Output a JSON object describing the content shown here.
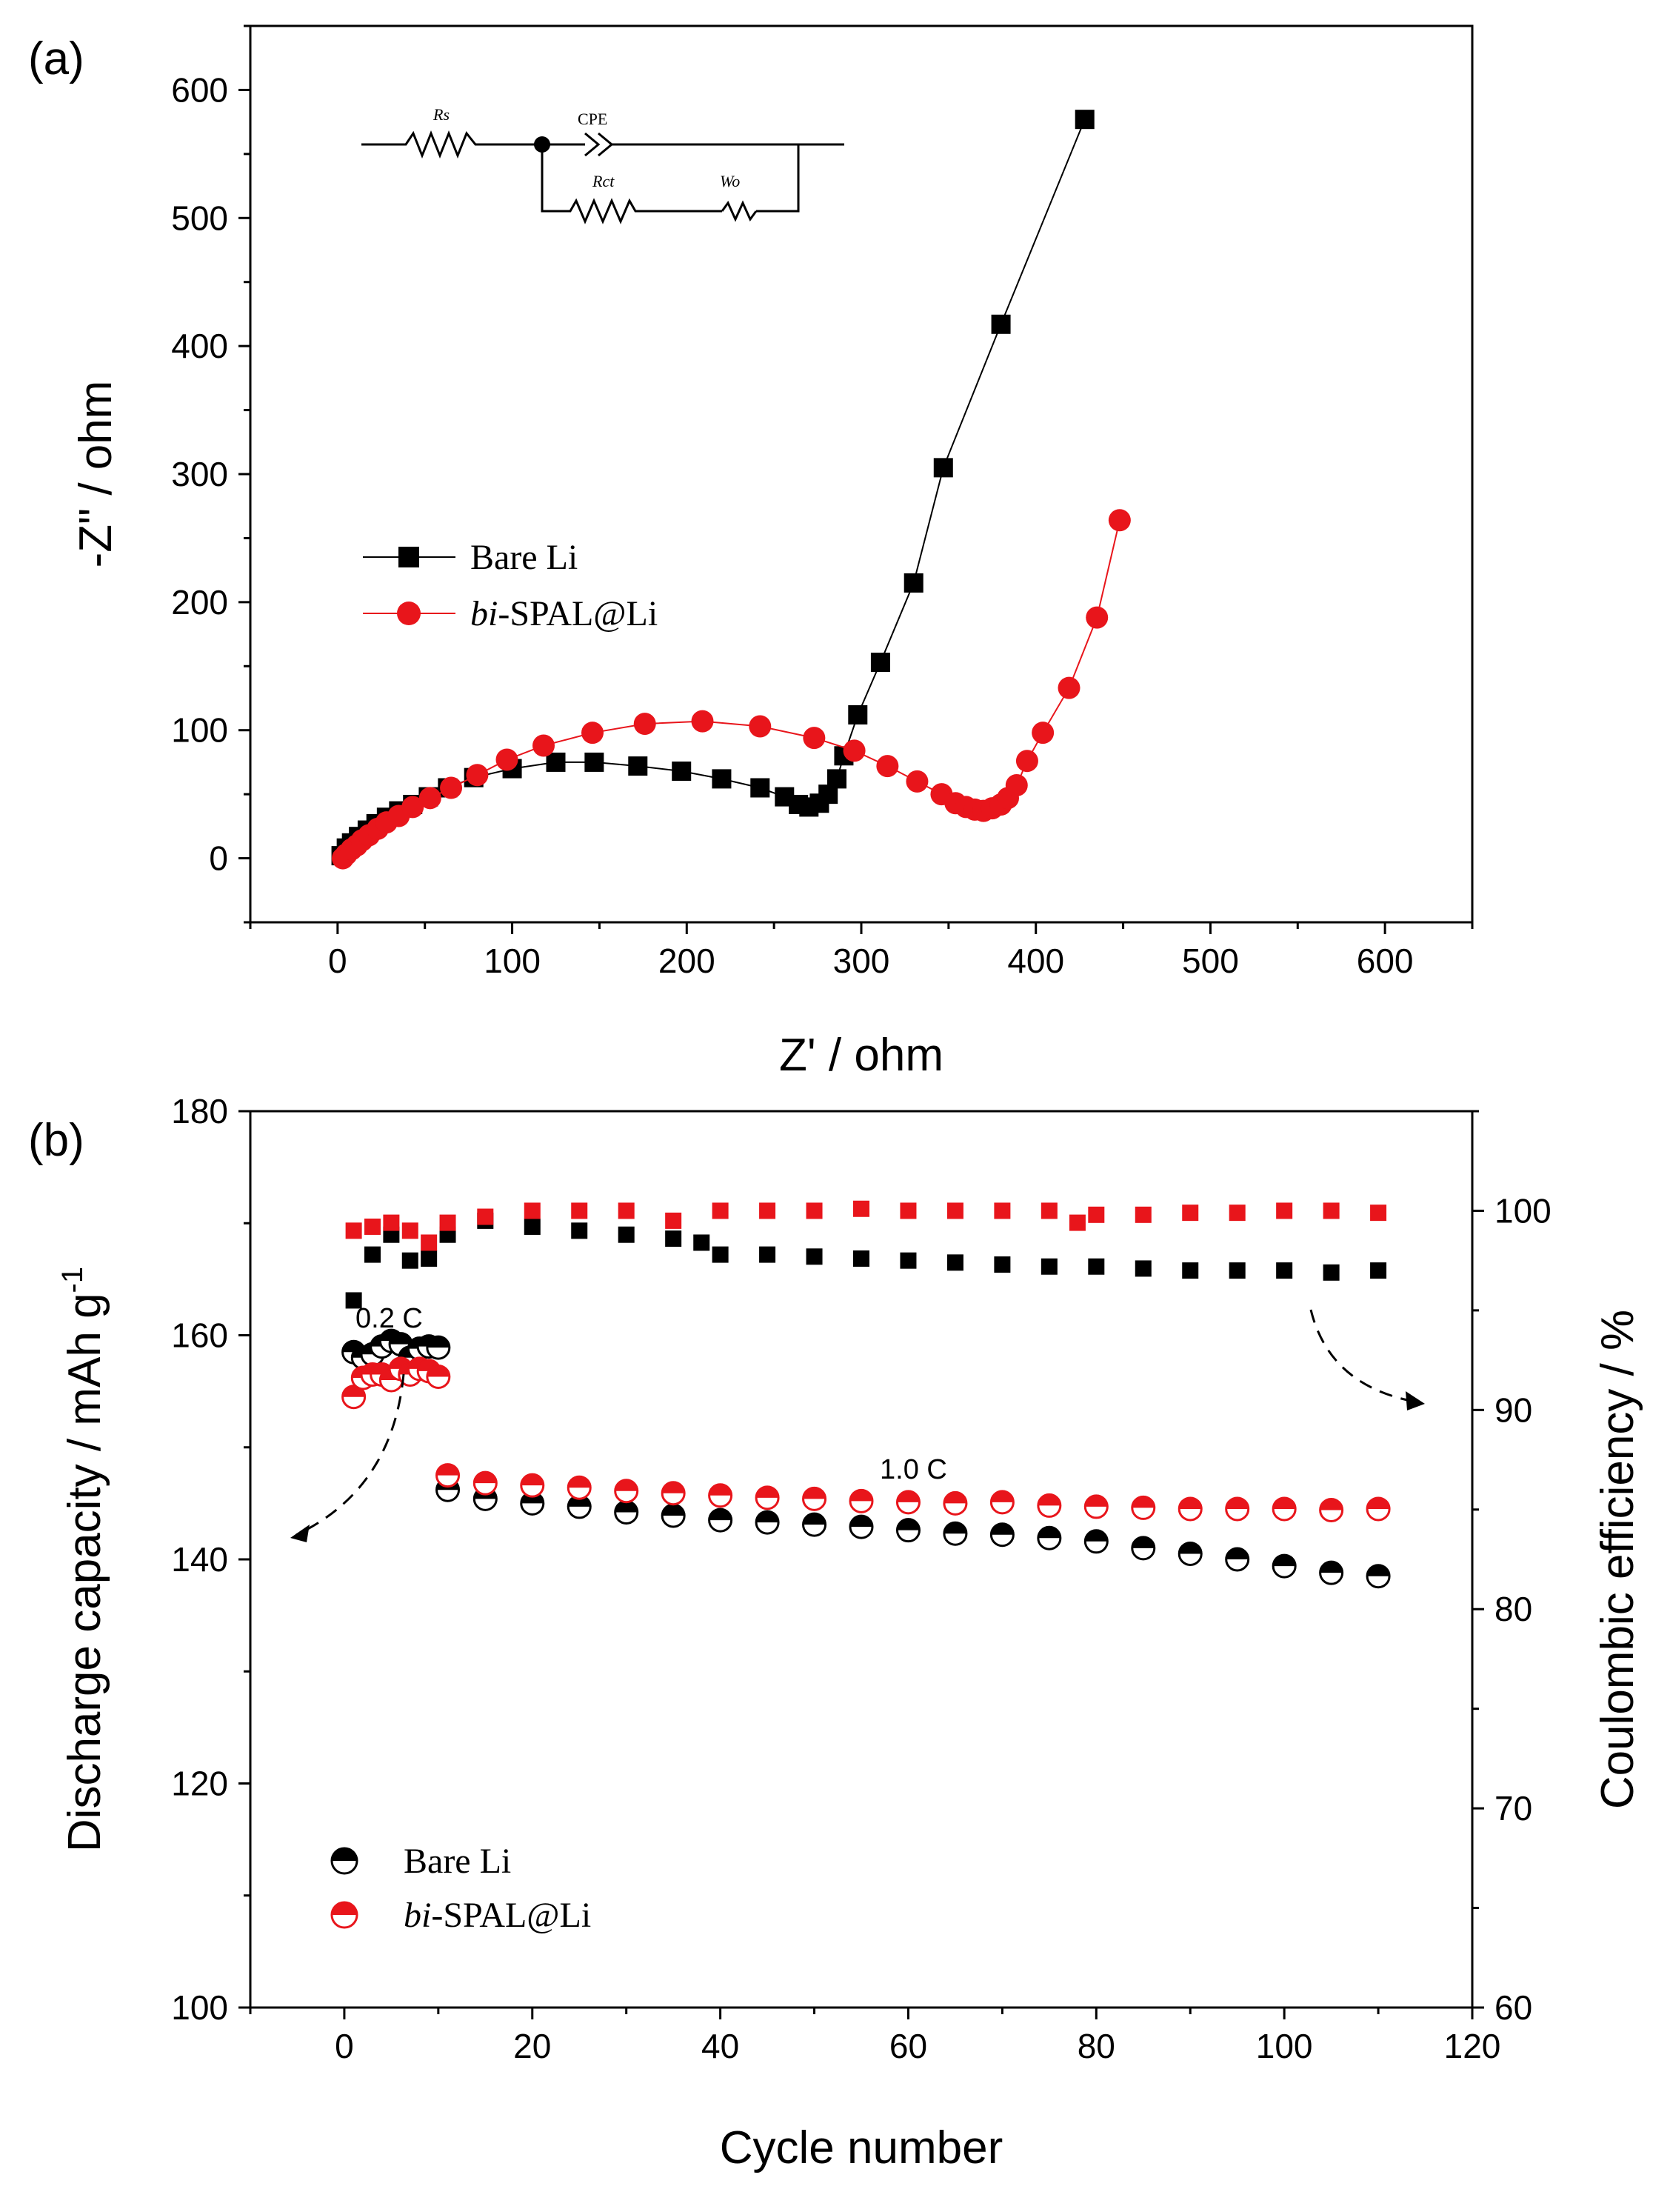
{
  "chart_data": [
    {
      "panel_label": "(a)",
      "type": "scatter",
      "xlabel": "Z' / ohm",
      "ylabel": "-Z\" / ohm",
      "xlim": [
        -50,
        650
      ],
      "ylim": [
        -50,
        650
      ],
      "x_ticks": [
        "0",
        "100",
        "200",
        "300",
        "400",
        "500",
        "600"
      ],
      "y_ticks": [
        "0",
        "100",
        "200",
        "300",
        "400",
        "500",
        "600"
      ],
      "legend_position": "middle-left",
      "inset_circuit": {
        "labels": [
          "Rs",
          "CPE",
          "Rct",
          "Wo"
        ]
      },
      "series": [
        {
          "name": "Bare Li",
          "color": "#000000",
          "marker": "square",
          "points": [
            [
              2,
              2
            ],
            [
              5,
              8
            ],
            [
              8,
              12
            ],
            [
              12,
              17
            ],
            [
              17,
              22
            ],
            [
              22,
              27
            ],
            [
              28,
              32
            ],
            [
              35,
              37
            ],
            [
              43,
              42
            ],
            [
              52,
              48
            ],
            [
              63,
              55
            ],
            [
              78,
              63
            ],
            [
              100,
              70
            ],
            [
              125,
              75
            ],
            [
              147,
              75
            ],
            [
              172,
              72
            ],
            [
              197,
              68
            ],
            [
              220,
              62
            ],
            [
              242,
              55
            ],
            [
              256,
              48
            ],
            [
              264,
              42
            ],
            [
              270,
              40
            ],
            [
              276,
              43
            ],
            [
              281,
              50
            ],
            [
              286,
              62
            ],
            [
              290,
              80
            ],
            [
              298,
              112
            ],
            [
              311,
              153
            ],
            [
              330,
              215
            ],
            [
              347,
              305
            ],
            [
              380,
              417
            ],
            [
              428,
              577
            ]
          ]
        },
        {
          "name": "bi-SPAL@Li",
          "color": "#e8151b",
          "marker": "circle",
          "points": [
            [
              3,
              0
            ],
            [
              5,
              3
            ],
            [
              8,
              7
            ],
            [
              11,
              10
            ],
            [
              14,
              14
            ],
            [
              18,
              18
            ],
            [
              23,
              23
            ],
            [
              28,
              28
            ],
            [
              35,
              33
            ],
            [
              43,
              40
            ],
            [
              53,
              47
            ],
            [
              65,
              55
            ],
            [
              80,
              65
            ],
            [
              97,
              77
            ],
            [
              118,
              88
            ],
            [
              146,
              98
            ],
            [
              176,
              105
            ],
            [
              209,
              107
            ],
            [
              242,
              103
            ],
            [
              273,
              94
            ],
            [
              296,
              84
            ],
            [
              315,
              72
            ],
            [
              332,
              60
            ],
            [
              346,
              50
            ],
            [
              354,
              43
            ],
            [
              360,
              40
            ],
            [
              365,
              38
            ],
            [
              370,
              37
            ],
            [
              375,
              39
            ],
            [
              380,
              42
            ],
            [
              384,
              47
            ],
            [
              389,
              57
            ],
            [
              395,
              76
            ],
            [
              404,
              98
            ],
            [
              419,
              133
            ],
            [
              435,
              188
            ],
            [
              448,
              264
            ]
          ]
        }
      ]
    },
    {
      "panel_label": "(b)",
      "type": "scatter",
      "xlabel": "Cycle number",
      "ylabel": "Discharge capacity / mAh g",
      "ylabel_superscript": "-1",
      "y2label": "Coulombic efficiency / %",
      "xlim": [
        -10,
        120
      ],
      "ylim": [
        100,
        180
      ],
      "y2lim": [
        60,
        105
      ],
      "x_ticks": [
        "0",
        "20",
        "40",
        "60",
        "80",
        "100",
        "120"
      ],
      "y_ticks": [
        "100",
        "120",
        "140",
        "160",
        "180"
      ],
      "y2_ticks": [
        "60",
        "70",
        "80",
        "90",
        "100"
      ],
      "legend_position": "bottom-left",
      "annotations": [
        "0.2 C",
        "1.0 C"
      ],
      "series": [
        {
          "name": "Bare Li",
          "kind": "discharge capacity",
          "color": "#000000",
          "marker": "half-filled circle",
          "axis": "left",
          "points": [
            [
              1,
              158.5
            ],
            [
              2,
              158.0
            ],
            [
              3,
              158.3
            ],
            [
              4,
              159.0
            ],
            [
              5,
              159.5
            ],
            [
              6,
              159.2
            ],
            [
              7,
              158.0
            ],
            [
              8,
              158.8
            ],
            [
              9,
              159.0
            ],
            [
              10,
              158.9
            ],
            [
              11,
              146.2
            ],
            [
              15,
              145.4
            ],
            [
              20,
              145.0
            ],
            [
              25,
              144.7
            ],
            [
              30,
              144.2
            ],
            [
              35,
              143.9
            ],
            [
              40,
              143.5
            ],
            [
              45,
              143.3
            ],
            [
              50,
              143.1
            ],
            [
              55,
              142.9
            ],
            [
              60,
              142.6
            ],
            [
              65,
              142.3
            ],
            [
              70,
              142.2
            ],
            [
              75,
              141.9
            ],
            [
              80,
              141.6
            ],
            [
              85,
              141.0
            ],
            [
              90,
              140.5
            ],
            [
              95,
              140.0
            ],
            [
              100,
              139.4
            ],
            [
              105,
              138.8
            ],
            [
              110,
              138.5
            ]
          ]
        },
        {
          "name": "bi-SPAL@Li",
          "kind": "discharge capacity",
          "color": "#e8151b",
          "marker": "half-filled circle",
          "axis": "left",
          "points": [
            [
              1,
              154.5
            ],
            [
              2,
              156.2
            ],
            [
              3,
              156.5
            ],
            [
              4,
              156.5
            ],
            [
              5,
              156.0
            ],
            [
              6,
              157.0
            ],
            [
              7,
              156.5
            ],
            [
              8,
              157.0
            ],
            [
              9,
              156.8
            ],
            [
              10,
              156.3
            ],
            [
              11,
              147.5
            ],
            [
              15,
              146.8
            ],
            [
              20,
              146.6
            ],
            [
              25,
              146.4
            ],
            [
              30,
              146.1
            ],
            [
              35,
              145.9
            ],
            [
              40,
              145.7
            ],
            [
              45,
              145.5
            ],
            [
              50,
              145.4
            ],
            [
              55,
              145.2
            ],
            [
              60,
              145.1
            ],
            [
              65,
              145.0
            ],
            [
              70,
              145.1
            ],
            [
              75,
              144.8
            ],
            [
              80,
              144.7
            ],
            [
              85,
              144.6
            ],
            [
              90,
              144.5
            ],
            [
              95,
              144.5
            ],
            [
              100,
              144.5
            ],
            [
              105,
              144.4
            ],
            [
              110,
              144.5
            ]
          ]
        },
        {
          "name": "Bare Li",
          "kind": "coulombic efficiency",
          "color": "#000000",
          "marker": "square",
          "axis": "right",
          "points": [
            [
              1,
              95.5
            ],
            [
              3,
              97.8
            ],
            [
              5,
              98.8
            ],
            [
              7,
              97.5
            ],
            [
              9,
              97.6
            ],
            [
              11,
              98.8
            ],
            [
              15,
              99.5
            ],
            [
              20,
              99.2
            ],
            [
              25,
              99.0
            ],
            [
              30,
              98.8
            ],
            [
              35,
              98.6
            ],
            [
              38,
              98.4
            ],
            [
              40,
              97.8
            ],
            [
              45,
              97.8
            ],
            [
              50,
              97.7
            ],
            [
              55,
              97.6
            ],
            [
              60,
              97.5
            ],
            [
              65,
              97.4
            ],
            [
              70,
              97.3
            ],
            [
              75,
              97.2
            ],
            [
              80,
              97.2
            ],
            [
              85,
              97.1
            ],
            [
              90,
              97.0
            ],
            [
              95,
              97.0
            ],
            [
              100,
              97.0
            ],
            [
              105,
              96.9
            ],
            [
              110,
              97.0
            ]
          ]
        },
        {
          "name": "bi-SPAL@Li",
          "kind": "coulombic efficiency",
          "color": "#e8151b",
          "marker": "square",
          "axis": "right",
          "points": [
            [
              1,
              99.0
            ],
            [
              3,
              99.2
            ],
            [
              5,
              99.4
            ],
            [
              7,
              99.0
            ],
            [
              9,
              98.4
            ],
            [
              11,
              99.4
            ],
            [
              15,
              99.7
            ],
            [
              20,
              100.0
            ],
            [
              25,
              100.0
            ],
            [
              30,
              100.0
            ],
            [
              35,
              99.5
            ],
            [
              40,
              100.0
            ],
            [
              45,
              100.0
            ],
            [
              50,
              100.0
            ],
            [
              55,
              100.1
            ],
            [
              60,
              100.0
            ],
            [
              65,
              100.0
            ],
            [
              70,
              100.0
            ],
            [
              75,
              100.0
            ],
            [
              78,
              99.4
            ],
            [
              80,
              99.8
            ],
            [
              85,
              99.8
            ],
            [
              90,
              99.9
            ],
            [
              95,
              99.9
            ],
            [
              100,
              100.0
            ],
            [
              105,
              100.0
            ],
            [
              110,
              99.9
            ]
          ]
        }
      ]
    }
  ]
}
